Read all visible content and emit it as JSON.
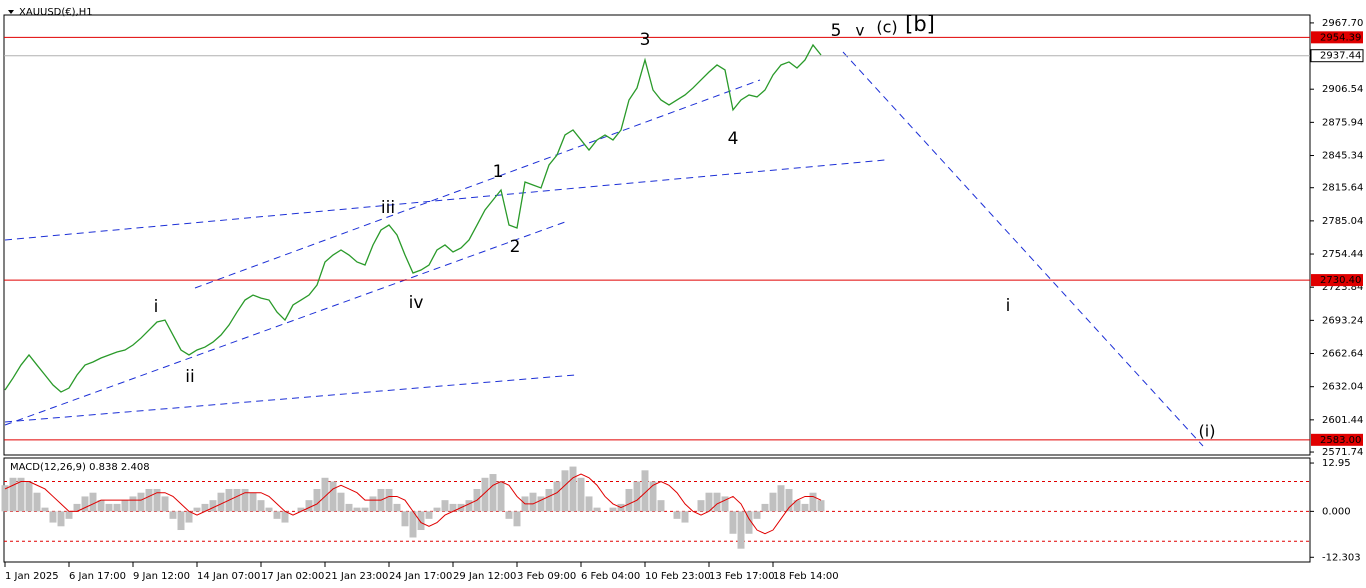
{
  "chart_data": [
    {
      "type": "line",
      "title": "XAUUSD(€),H1",
      "categories": [
        "1 Jan 2025",
        null,
        null,
        null,
        null,
        null,
        null,
        null,
        "6 Jan 17:00",
        null,
        null,
        null,
        null,
        null,
        null,
        null,
        "9 Jan 12:00",
        null,
        null,
        null,
        null,
        null,
        null,
        null,
        "14 Jan 07:00",
        null,
        null,
        null,
        null,
        null,
        null,
        null,
        "17 Jan 02:00",
        null,
        null,
        null,
        null,
        null,
        null,
        null,
        "21 Jan 23:00",
        null,
        null,
        null,
        null,
        null,
        null,
        null,
        "24 Jan 17:00",
        null,
        null,
        null,
        null,
        null,
        null,
        null,
        "29 Jan 12:00",
        null,
        null,
        null,
        null,
        null,
        null,
        null,
        "3 Feb 09:00",
        null,
        null,
        null,
        null,
        null,
        null,
        null,
        "6 Feb 04:00",
        null,
        null,
        null,
        null,
        null,
        null,
        null,
        "10 Feb 23:00",
        null,
        null,
        null,
        null,
        null,
        null,
        null,
        "13 Feb 17:00",
        null,
        null,
        null,
        null,
        null,
        null,
        null,
        "18 Feb 14:00",
        null,
        null,
        null,
        null,
        null,
        null
      ],
      "values": [
        2629.0,
        2640.0,
        2652.0,
        2661.3,
        2652.0,
        2642.8,
        2633.6,
        2627.1,
        2630.8,
        2642.8,
        2652.0,
        2654.8,
        2658.5,
        2661.3,
        2664.0,
        2665.9,
        2670.5,
        2676.9,
        2684.3,
        2691.7,
        2693.5,
        2679.7,
        2665.9,
        2661.3,
        2665.9,
        2668.6,
        2673.2,
        2679.7,
        2688.9,
        2700.9,
        2712.0,
        2716.6,
        2713.8,
        2712.0,
        2700.9,
        2693.5,
        2707.4,
        2712.0,
        2716.6,
        2725.8,
        2747.1,
        2753.5,
        2758.2,
        2753.5,
        2747.1,
        2744.3,
        2762.8,
        2776.6,
        2781.2,
        2772.0,
        2753.5,
        2736.9,
        2739.7,
        2744.3,
        2758.2,
        2762.8,
        2756.3,
        2760.0,
        2767.4,
        2781.2,
        2795.1,
        2804.3,
        2813.5,
        2781.2,
        2778.5,
        2820.9,
        2818.1,
        2815.4,
        2836.6,
        2845.8,
        2864.3,
        2868.9,
        2859.7,
        2850.4,
        2859.7,
        2864.3,
        2859.7,
        2868.9,
        2896.6,
        2907.7,
        2933.5,
        2905.8,
        2896.6,
        2892.0,
        2896.6,
        2901.2,
        2907.7,
        2915.1,
        2922.4,
        2928.9,
        2924.3,
        2887.4,
        2896.6,
        2901.2,
        2899.4,
        2905.8,
        2919.7,
        2928.9,
        2931.7,
        2926.1,
        2933.5,
        2947.4,
        2938.1
      ],
      "color": "#2a9a2a",
      "ylim": [
        2569,
        2975
      ],
      "yticks": [
        {
          "value": 2967.7,
          "label": "2967.70"
        },
        2906.54,
        2875.94,
        2845.34,
        2815.64,
        2785.04,
        2754.44,
        2723.84,
        2693.24,
        2662.64,
        2632.04,
        2601.44,
        2571.74
      ],
      "levels": [
        2954.39,
        {
          "value": 2730.4,
          "label": "2730.40"
        },
        {
          "value": 2583.0,
          "label": "2583.00"
        }
      ],
      "level_color": "#e00000",
      "last_price": 2937.44,
      "annotations": [
        {
          "text": "5",
          "color": "#000000"
        },
        {
          "text": "v",
          "color": "#e020e0"
        },
        {
          "text": "(c)",
          "color": "#1a1adb"
        },
        {
          "text": "[b]",
          "color": "#1f8f1f"
        },
        {
          "text": "3",
          "color": "#000000"
        },
        {
          "text": "4",
          "color": "#000000"
        },
        {
          "text": "1",
          "color": "#000000"
        },
        {
          "text": "2",
          "color": "#000000"
        },
        {
          "text": "iii",
          "color": "#e020e0"
        },
        {
          "text": "iv",
          "color": "#e020e0"
        },
        {
          "text": "i",
          "color": "#e020e0"
        },
        {
          "text": "ii",
          "color": "#e020e0"
        },
        {
          "text": "i",
          "color": "#e020e0"
        },
        {
          "text": "(i)",
          "color": "#1a1adb"
        }
      ]
    },
    {
      "type": "bar",
      "title": "MACD(12,26,9) 0.838 2.408",
      "values": [
        7,
        9,
        9,
        8,
        5,
        1,
        -3,
        -4,
        -2,
        2,
        4,
        5,
        3,
        2,
        2,
        3,
        4,
        5,
        6,
        6,
        4,
        -2,
        -5,
        -3,
        1,
        2,
        3,
        5,
        6,
        6,
        6,
        5,
        3,
        1,
        -2,
        -3,
        0,
        1,
        3,
        6,
        9,
        8,
        5,
        2,
        1,
        1,
        4,
        6,
        6,
        2,
        -4,
        -7,
        -5,
        -2,
        1,
        3,
        2,
        2,
        3,
        6,
        9,
        10,
        8,
        -2,
        -4,
        4,
        5,
        4,
        6,
        8,
        11,
        12,
        9,
        4,
        1,
        0,
        1,
        2,
        6,
        8,
        11,
        8,
        3,
        0,
        -2,
        -3,
        0,
        3,
        5,
        5,
        4,
        -6,
        -10,
        -6,
        -2,
        2,
        5,
        7,
        6,
        3,
        2,
        5,
        3
      ],
      "color": "#c0c0c0",
      "signal": [
        6,
        7,
        8,
        8,
        7,
        6,
        4,
        2,
        0,
        0,
        1,
        2,
        3,
        3,
        3,
        3,
        3,
        3,
        4,
        5,
        5,
        4,
        2,
        0,
        -1,
        0,
        1,
        2,
        3,
        4,
        5,
        5,
        5,
        4,
        2,
        0,
        -1,
        0,
        1,
        2,
        4,
        6,
        7,
        6,
        5,
        3,
        3,
        3,
        4,
        4,
        3,
        0,
        -3,
        -4,
        -3,
        -1,
        0,
        1,
        2,
        3,
        5,
        7,
        8,
        7,
        4,
        2,
        2,
        3,
        4,
        5,
        7,
        9,
        10,
        9,
        7,
        4,
        2,
        1,
        2,
        3,
        5,
        7,
        8,
        7,
        5,
        2,
        0,
        -1,
        0,
        2,
        3,
        4,
        2,
        -2,
        -5,
        -6,
        -5,
        -2,
        1,
        3,
        4,
        4,
        3
      ],
      "signal_color": "#e00000",
      "levels": [
        8,
        0,
        -8
      ],
      "ylim": [
        -13.3,
        14.3
      ],
      "yticks": [
        12.95,
        {
          "value": 0,
          "label": "0.000"
        },
        -12.303
      ]
    }
  ]
}
